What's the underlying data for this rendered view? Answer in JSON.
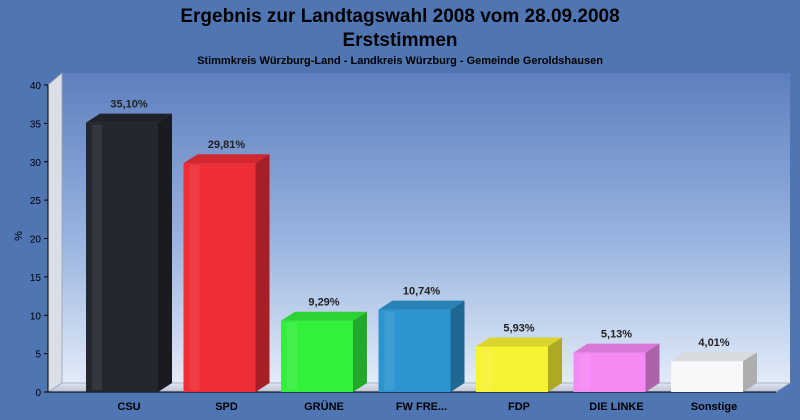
{
  "chart_data": {
    "type": "bar",
    "title": "Ergebnis zur Landtagswahl 2008 vom 28.09.2008",
    "title2": "Erststimmen",
    "subtitle": "Stimmkreis Würzburg-Land - Landkreis Würzburg - Gemeinde Geroldshausen",
    "ylabel": "%",
    "ylim": [
      0,
      40
    ],
    "yticks": [
      "0",
      "5",
      "10",
      "15",
      "20",
      "25",
      "30",
      "35",
      "40"
    ],
    "categories": [
      "CSU",
      "SPD",
      "GRÜNE",
      "FW FRE...",
      "FDP",
      "DIE LINKE",
      "Sonstige"
    ],
    "values": [
      35.1,
      29.81,
      9.29,
      10.74,
      5.93,
      5.13,
      4.01
    ],
    "value_labels": [
      "35,10%",
      "29,81%",
      "9,29%",
      "10,74%",
      "5,93%",
      "5,13%",
      "4,01%"
    ],
    "colors": [
      "#23272f",
      "#ee2d36",
      "#33f03b",
      "#2c95d0",
      "#f7f233",
      "#f58af4",
      "#f7f8fa"
    ],
    "grid": false,
    "legend": "none"
  }
}
